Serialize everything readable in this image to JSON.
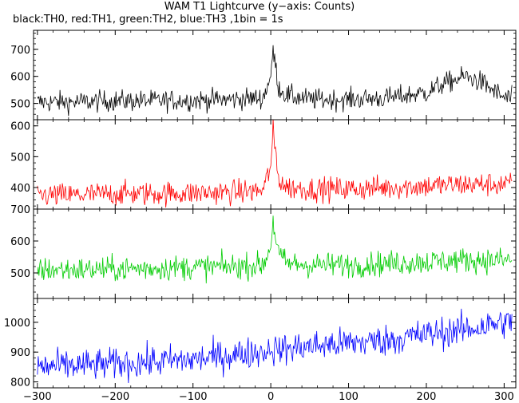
{
  "chart_data": {
    "type": "line",
    "title": "WAM T1 Lightcurve (y−axis: Counts)",
    "subtitle": "black:TH0, red:TH1, green:TH2, blue:TH3 ,1bin = 1s",
    "x_range": [
      -305,
      315
    ],
    "x_ticks": [
      -300,
      -200,
      -100,
      0,
      100,
      200,
      300
    ],
    "x_tick_labels": [
      "−300",
      "−200",
      "−100",
      "0",
      "100",
      "200",
      "300"
    ],
    "grid": false,
    "panels": [
      {
        "color": "#000000",
        "ylim": [
          440,
          770
        ],
        "yticks": [
          500,
          600,
          700
        ],
        "samples_x": [
          -300,
          -250,
          -200,
          -150,
          -100,
          -50,
          -10,
          0,
          3,
          10,
          20,
          50,
          100,
          150,
          200,
          220,
          250,
          270,
          300,
          310
        ],
        "samples_y": [
          505,
          505,
          510,
          510,
          512,
          515,
          520,
          600,
          700,
          560,
          530,
          515,
          515,
          520,
          540,
          570,
          600,
          580,
          520,
          520
        ]
      },
      {
        "color": "#ff0000",
        "ylim": [
          330,
          620
        ],
        "yticks": [
          400,
          500,
          600
        ],
        "samples_x": [
          -300,
          -250,
          -200,
          -150,
          -100,
          -50,
          -10,
          0,
          3,
          10,
          20,
          50,
          100,
          150,
          200,
          250,
          300,
          310
        ],
        "samples_y": [
          375,
          375,
          380,
          380,
          382,
          385,
          390,
          470,
          580,
          430,
          400,
          395,
          395,
          400,
          405,
          410,
          410,
          410
        ]
      },
      {
        "color": "#00cc00",
        "ylim": [
          420,
          700
        ],
        "yticks": [
          500,
          600,
          700
        ],
        "samples_x": [
          -300,
          -250,
          -200,
          -150,
          -100,
          -50,
          -10,
          0,
          3,
          10,
          20,
          50,
          100,
          150,
          200,
          250,
          300,
          310
        ],
        "samples_y": [
          510,
          510,
          512,
          515,
          518,
          520,
          525,
          580,
          660,
          560,
          530,
          525,
          525,
          530,
          535,
          540,
          540,
          540
        ]
      },
      {
        "color": "#0000ff",
        "ylim": [
          780,
          1080
        ],
        "yticks": [
          800,
          900,
          1000
        ],
        "samples_x": [
          -300,
          -200,
          -100,
          -50,
          0,
          50,
          100,
          150,
          200,
          250,
          300,
          310
        ],
        "samples_y": [
          850,
          860,
          875,
          890,
          905,
          920,
          930,
          940,
          960,
          975,
          1000,
          1000
        ]
      }
    ]
  }
}
